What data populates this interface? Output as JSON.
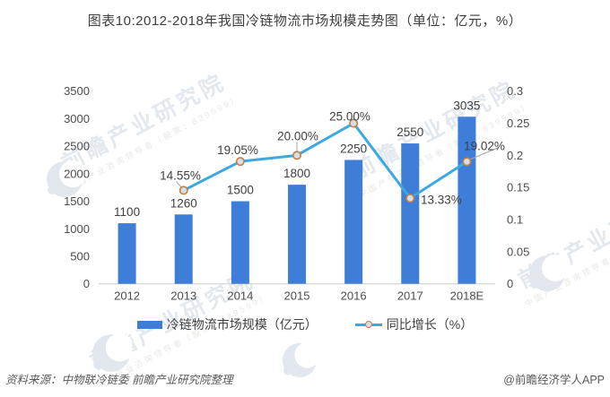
{
  "title": "图表10:2012-2018年我国冷链物流市场规模走势图（单位：亿元，%）",
  "chart_data": {
    "type": "bar+line combo",
    "categories": [
      "2012",
      "2013",
      "2014",
      "2015",
      "2016",
      "2017",
      "2018E"
    ],
    "series": [
      {
        "name": "冷链物流市场规模（亿元）",
        "type": "bar",
        "axis": "left",
        "values": [
          1100,
          1260,
          1500,
          1800,
          2250,
          2550,
          3035
        ]
      },
      {
        "name": "同比增长（%）",
        "type": "line",
        "axis": "right",
        "values": [
          null,
          14.55,
          19.05,
          20.0,
          25.0,
          13.33,
          19.02
        ],
        "point_labels": [
          null,
          "14.55%",
          "19.05%",
          "20.00%",
          "25.00%",
          "13.33%",
          "19.02%"
        ]
      }
    ],
    "left_axis": {
      "min": 0,
      "max": 3500,
      "ticks": [
        "3500",
        "3000",
        "2500",
        "2000",
        "1500",
        "1000",
        "500",
        "0"
      ]
    },
    "right_axis": {
      "min": 0,
      "max": 0.3,
      "ticks": [
        "0.3",
        "0.25",
        "0.2",
        "0.15",
        "0.1",
        "0.05",
        "0"
      ]
    },
    "grid": false,
    "legend_position": "bottom"
  },
  "legend": {
    "bar_label": "冷链物流市场规模（亿元）",
    "line_label": "同比增长（%）"
  },
  "footer": {
    "source": "资料来源：中物联冷链委 前瞻产业研究院整理",
    "credit": "@前瞻经济学人APP"
  },
  "watermark": {
    "main": "前瞻产业研究院",
    "sub": "中国产业咨询领导者（股票：839599）"
  },
  "colors": {
    "bar": "#3e7dd8",
    "line": "#3bа8e0",
    "line_blue": "#3ba8e0",
    "marker_ring": "#c17e45",
    "marker_fill": "#d9dee5",
    "axis_line": "#d9d9d9",
    "leader": "#a6a6a6",
    "label": "#404040",
    "tick": "#4d4d4d",
    "footer_text": "#595959"
  }
}
